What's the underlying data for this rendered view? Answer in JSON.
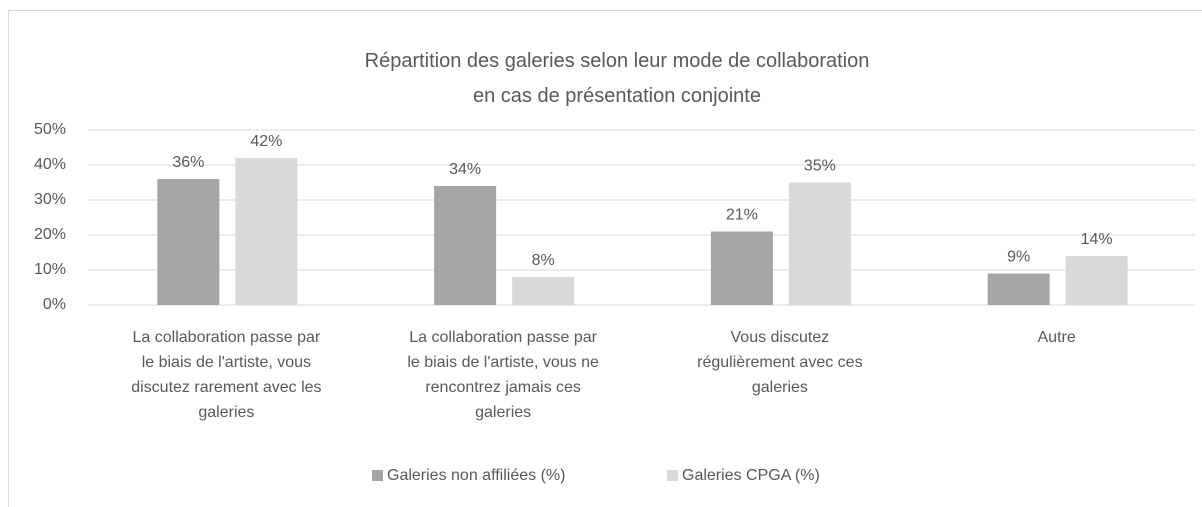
{
  "chart_data": {
    "type": "bar",
    "title": "Répartition des galeries selon leur mode de collaboration\nen cas de présentation conjointe",
    "categories": [
      "La collaboration passe par\nle biais de l'artiste, vous\ndiscutez rarement avec les\ngaleries",
      "La collaboration passe par\nle biais de l'artiste, vous ne\nrencontrez jamais ces\ngaleries",
      "Vous discutez\nrégulièrement avec ces\ngaleries",
      "Autre"
    ],
    "series": [
      {
        "name": "Galeries non affiliées (%)",
        "color": "#a5a5a5",
        "values": [
          36,
          34,
          21,
          9
        ],
        "value_labels": [
          "36%",
          "34%",
          "21%",
          "9%"
        ]
      },
      {
        "name": "Galeries CPGA (%)",
        "color": "#d9d9d9",
        "values": [
          42,
          8,
          35,
          14
        ],
        "value_labels": [
          "42%",
          "8%",
          "35%",
          "14%"
        ]
      }
    ],
    "ylim": [
      0,
      50
    ],
    "yticks": [
      {
        "value": 0,
        "label": "0%"
      },
      {
        "value": 10,
        "label": "10%"
      },
      {
        "value": 20,
        "label": "20%"
      },
      {
        "value": 30,
        "label": "30%"
      },
      {
        "value": 40,
        "label": "40%"
      },
      {
        "value": 50,
        "label": "50%"
      }
    ],
    "grid": true,
    "legend": "bottom"
  }
}
